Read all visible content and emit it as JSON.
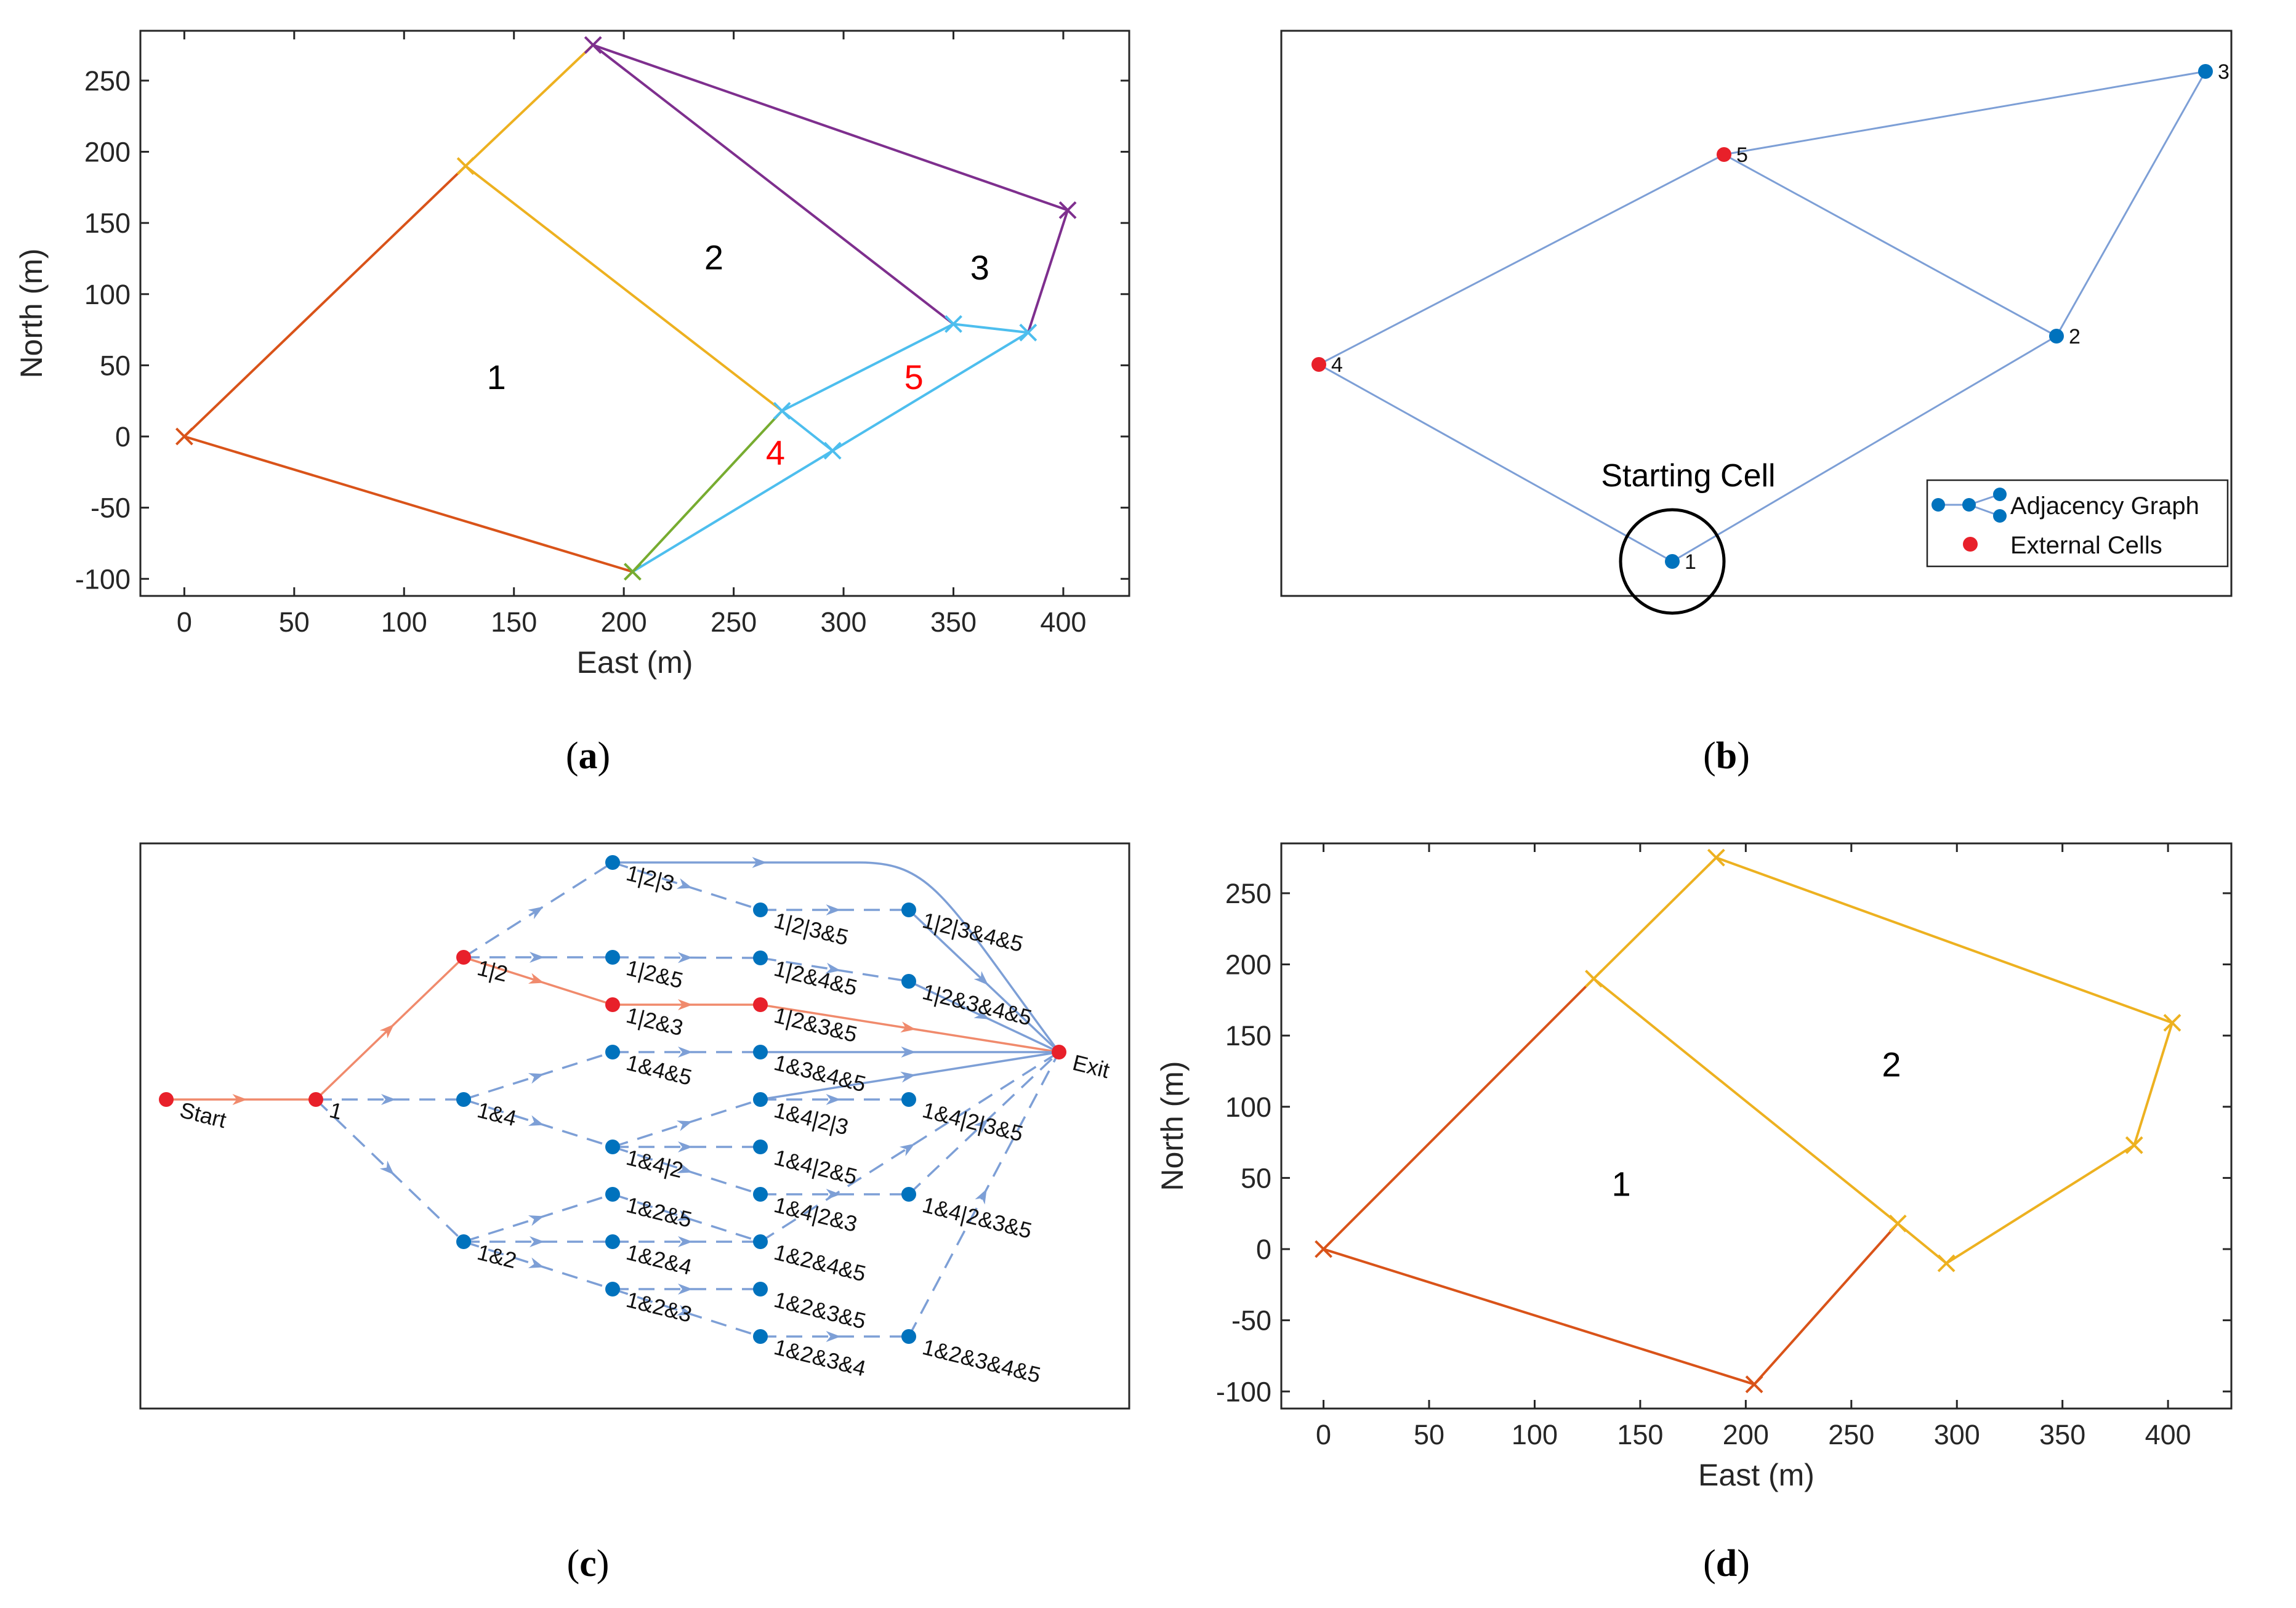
{
  "panels": {
    "a": {
      "caption": "a",
      "xlabel": "East (m)",
      "ylabel": "North (m)",
      "xlim": [
        -20,
        430
      ],
      "ylim": [
        -112,
        285
      ],
      "xticks": [
        0,
        50,
        100,
        150,
        200,
        250,
        300,
        350,
        400
      ],
      "yticks": [
        -100,
        -50,
        0,
        50,
        100,
        150,
        200,
        250
      ],
      "segments": [
        {
          "from": [
            0,
            0
          ],
          "to": [
            128,
            190
          ],
          "color": "#d95319",
          "style": "solid"
        },
        {
          "from": [
            0,
            0
          ],
          "to": [
            204,
            -95
          ],
          "color": "#d95319",
          "style": "solid"
        },
        {
          "from": [
            128,
            190
          ],
          "to": [
            186,
            275
          ],
          "color": "#edb120",
          "style": "solid"
        },
        {
          "from": [
            128,
            190
          ],
          "to": [
            272,
            18
          ],
          "color": "#edb120",
          "style": "solid"
        },
        {
          "from": [
            186,
            275
          ],
          "to": [
            402,
            159
          ],
          "color": "#7e2f8e",
          "style": "solid"
        },
        {
          "from": [
            186,
            275
          ],
          "to": [
            350,
            79
          ],
          "color": "#7e2f8e",
          "style": "solid"
        },
        {
          "from": [
            402,
            159
          ],
          "to": [
            384,
            73
          ],
          "color": "#7e2f8e",
          "style": "solid"
        },
        {
          "from": [
            204,
            -95
          ],
          "to": [
            272,
            18
          ],
          "color": "#77ac30",
          "style": "solid"
        },
        {
          "from": [
            204,
            -95
          ],
          "to": [
            295,
            -10
          ],
          "color": "#4dbeee",
          "style": "solid"
        },
        {
          "from": [
            272,
            18
          ],
          "to": [
            295,
            -10
          ],
          "color": "#4dbeee",
          "style": "solid"
        },
        {
          "from": [
            272,
            18
          ],
          "to": [
            350,
            79
          ],
          "color": "#4dbeee",
          "style": "solid"
        },
        {
          "from": [
            350,
            79
          ],
          "to": [
            384,
            73
          ],
          "color": "#4dbeee",
          "style": "solid"
        },
        {
          "from": [
            295,
            -10
          ],
          "to": [
            384,
            73
          ],
          "color": "#4dbeee",
          "style": "solid"
        }
      ],
      "markers": [
        {
          "x": 0,
          "y": 0,
          "color": "#d95319"
        },
        {
          "x": 128,
          "y": 190,
          "color": "#edb120"
        },
        {
          "x": 186,
          "y": 275,
          "color": "#7e2f8e"
        },
        {
          "x": 402,
          "y": 159,
          "color": "#7e2f8e"
        },
        {
          "x": 384,
          "y": 73,
          "color": "#4dbeee"
        },
        {
          "x": 350,
          "y": 79,
          "color": "#4dbeee"
        },
        {
          "x": 272,
          "y": 18,
          "color": "#4dbeee"
        },
        {
          "x": 295,
          "y": -10,
          "color": "#4dbeee"
        },
        {
          "x": 204,
          "y": -95,
          "color": "#77ac30"
        }
      ],
      "labels": [
        {
          "text": "1",
          "x": 142,
          "y": 42,
          "color": "#000000"
        },
        {
          "text": "2",
          "x": 241,
          "y": 126,
          "color": "#000000"
        },
        {
          "text": "3",
          "x": 362,
          "y": 119,
          "color": "#000000"
        },
        {
          "text": "4",
          "x": 269,
          "y": -11,
          "color": "#ff0000"
        },
        {
          "text": "5",
          "x": 332,
          "y": 42,
          "color": "#ff0000"
        }
      ]
    },
    "b": {
      "caption": "b",
      "edges": [
        [
          1,
          4
        ],
        [
          4,
          5
        ],
        [
          5,
          3
        ],
        [
          3,
          2
        ],
        [
          2,
          5
        ],
        [
          2,
          1
        ]
      ],
      "nodes": [
        {
          "id": 1,
          "label": "1",
          "external": false
        },
        {
          "id": 2,
          "label": "2",
          "external": false
        },
        {
          "id": 3,
          "label": "3",
          "external": false
        },
        {
          "id": 4,
          "label": "4",
          "external": true
        },
        {
          "id": 5,
          "label": "5",
          "external": true
        }
      ],
      "annotation": "Starting Cell",
      "legend": [
        "Adjacency Graph",
        "External Cells"
      ],
      "colors": {
        "edge": "#7d9fd6",
        "node": "#0072bd",
        "external": "#e8202a"
      }
    },
    "c": {
      "caption": "c",
      "nodes": [
        {
          "id": "Start",
          "col": 0,
          "row": 5,
          "red": true
        },
        {
          "id": "1",
          "col": 1,
          "row": 5,
          "red": true
        },
        {
          "id": "1|2",
          "col": 2,
          "row": 2,
          "red": true
        },
        {
          "id": "1&4",
          "col": 2,
          "row": 5,
          "red": false
        },
        {
          "id": "1&2",
          "col": 2,
          "row": 8,
          "red": false
        },
        {
          "id": "1|2|3",
          "col": 3,
          "row": 0,
          "red": false
        },
        {
          "id": "1|2&5",
          "col": 3,
          "row": 2,
          "red": false
        },
        {
          "id": "1|2&3",
          "col": 3,
          "row": 3,
          "red": true
        },
        {
          "id": "1&4&5",
          "col": 3,
          "row": 4,
          "red": false
        },
        {
          "id": "1&4|2",
          "col": 3,
          "row": 6,
          "red": false
        },
        {
          "id": "1&2&5",
          "col": 3,
          "row": 7,
          "red": false
        },
        {
          "id": "1&2&4",
          "col": 3,
          "row": 8,
          "red": false
        },
        {
          "id": "1&2&3",
          "col": 3,
          "row": 9,
          "red": false
        },
        {
          "id": "1|2|3&5",
          "col": 4,
          "row": 1,
          "red": false
        },
        {
          "id": "1|2&4&5",
          "col": 4,
          "row": 2,
          "red": false
        },
        {
          "id": "1|2&3&5",
          "col": 4,
          "row": 3,
          "red": true
        },
        {
          "id": "1&3&4&5",
          "col": 4,
          "row": 4,
          "red": false
        },
        {
          "id": "1&4|2|3",
          "col": 4,
          "row": 5,
          "red": false
        },
        {
          "id": "1&4|2&5",
          "col": 4,
          "row": 6,
          "red": false
        },
        {
          "id": "1&4|2&3",
          "col": 4,
          "row": 7,
          "red": false
        },
        {
          "id": "1&2&4&5",
          "col": 4,
          "row": 8,
          "red": false
        },
        {
          "id": "1&2&3&5",
          "col": 4,
          "row": 9,
          "red": false
        },
        {
          "id": "1&2&3&4",
          "col": 4,
          "row": 10,
          "red": false
        },
        {
          "id": "1|2|3&4&5",
          "col": 5,
          "row": 1,
          "red": false
        },
        {
          "id": "1|2&3&4&5",
          "col": 5,
          "row": 2,
          "red": false
        },
        {
          "id": "1&4|2|3&5",
          "col": 5,
          "row": 5,
          "red": false
        },
        {
          "id": "1&4|2&3&5",
          "col": 5,
          "row": 7,
          "red": false
        },
        {
          "id": "1&2&3&4&5",
          "col": 5,
          "row": 10,
          "red": false
        },
        {
          "id": "Exit",
          "col": 6,
          "row": 4,
          "red": true
        }
      ],
      "edges": [
        {
          "from": "Start",
          "to": "1",
          "style": "path"
        },
        {
          "from": "1",
          "to": "1|2",
          "style": "path"
        },
        {
          "from": "1",
          "to": "1&4",
          "style": "dashed"
        },
        {
          "from": "1",
          "to": "1&2",
          "style": "dashed"
        },
        {
          "from": "1|2",
          "to": "1|2|3",
          "style": "dashed"
        },
        {
          "from": "1|2",
          "to": "1|2&5",
          "style": "dashed"
        },
        {
          "from": "1|2",
          "to": "1|2&3",
          "style": "path"
        },
        {
          "from": "1|2&3",
          "to": "1|2&3&5",
          "style": "path"
        },
        {
          "from": "1|2&3&5",
          "to": "Exit",
          "style": "path"
        },
        {
          "from": "1|2|3",
          "to": "1|2|3&5",
          "style": "dashed"
        },
        {
          "from": "1|2|3",
          "to": "Exit",
          "style": "curve"
        },
        {
          "from": "1|2|3&5",
          "to": "1|2|3&4&5",
          "style": "dashed"
        },
        {
          "from": "1|2&5",
          "to": "1|2&4&5",
          "style": "dashed"
        },
        {
          "from": "1|2&4&5",
          "to": "1|2&3&4&5",
          "style": "dashed"
        },
        {
          "from": "1|2&3&4&5",
          "to": "Exit",
          "style": "solid"
        },
        {
          "from": "1|2|3&4&5",
          "to": "Exit",
          "style": "solid"
        },
        {
          "from": "1&4",
          "to": "1&4&5",
          "style": "dashed"
        },
        {
          "from": "1&4",
          "to": "1&4|2",
          "style": "dashed"
        },
        {
          "from": "1&4&5",
          "to": "1&3&4&5",
          "style": "dashed"
        },
        {
          "from": "1&3&4&5",
          "to": "Exit",
          "style": "solid"
        },
        {
          "from": "1&4|2",
          "to": "1&4|2|3",
          "style": "dashed"
        },
        {
          "from": "1&4|2",
          "to": "1&4|2&5",
          "style": "dashed"
        },
        {
          "from": "1&4|2",
          "to": "1&4|2&3",
          "style": "dashed"
        },
        {
          "from": "1&4|2|3",
          "to": "1&4|2|3&5",
          "style": "dashed"
        },
        {
          "from": "1&4|2|3",
          "to": "Exit",
          "style": "solid"
        },
        {
          "from": "1&4|2&3",
          "to": "1&4|2&3&5",
          "style": "dashed"
        },
        {
          "from": "1&4|2&3&5",
          "to": "Exit",
          "style": "dashed"
        },
        {
          "from": "1&2",
          "to": "1&2&5",
          "style": "dashed"
        },
        {
          "from": "1&2",
          "to": "1&2&4",
          "style": "dashed"
        },
        {
          "from": "1&2",
          "to": "1&2&3",
          "style": "dashed"
        },
        {
          "from": "1&2&5",
          "to": "1&2&4&5",
          "style": "dashed"
        },
        {
          "from": "1&2&4",
          "to": "1&2&4&5",
          "style": "dashed"
        },
        {
          "from": "1&2&3",
          "to": "1&2&3&5",
          "style": "dashed"
        },
        {
          "from": "1&2&3",
          "to": "1&2&3&4",
          "style": "dashed"
        },
        {
          "from": "1&2&3&4",
          "to": "1&2&3&4&5",
          "style": "dashed"
        },
        {
          "from": "1&2&3&4&5",
          "to": "Exit",
          "style": "dashed"
        },
        {
          "from": "1&2&4&5",
          "to": "Exit",
          "style": "dashed"
        }
      ],
      "colors": {
        "path": "#f08a6c",
        "edge": "#7d9fd6",
        "node": "#0072bd",
        "red": "#e8202a"
      }
    },
    "d": {
      "caption": "d",
      "xlabel": "East (m)",
      "ylabel": "North (m)",
      "xlim": [
        -20,
        430
      ],
      "ylim": [
        -112,
        285
      ],
      "xticks": [
        0,
        50,
        100,
        150,
        200,
        250,
        300,
        350,
        400
      ],
      "yticks": [
        -100,
        -50,
        0,
        50,
        100,
        150,
        200,
        250
      ],
      "segments": [
        {
          "from": [
            0,
            0
          ],
          "to": [
            128,
            190
          ],
          "color": "#d95319",
          "style": "solid"
        },
        {
          "from": [
            0,
            0
          ],
          "to": [
            204,
            -95
          ],
          "color": "#d95319",
          "style": "solid"
        },
        {
          "from": [
            204,
            -95
          ],
          "to": [
            272,
            18
          ],
          "color": "#d95319",
          "style": "solid"
        },
        {
          "from": [
            128,
            190
          ],
          "to": [
            272,
            18
          ],
          "color": "#edb120",
          "style": "solid"
        },
        {
          "from": [
            128,
            190
          ],
          "to": [
            186,
            275
          ],
          "color": "#edb120",
          "style": "solid"
        },
        {
          "from": [
            186,
            275
          ],
          "to": [
            402,
            159
          ],
          "color": "#edb120",
          "style": "solid"
        },
        {
          "from": [
            402,
            159
          ],
          "to": [
            384,
            73
          ],
          "color": "#edb120",
          "style": "solid"
        },
        {
          "from": [
            384,
            73
          ],
          "to": [
            295,
            -10
          ],
          "color": "#edb120",
          "style": "solid"
        },
        {
          "from": [
            295,
            -10
          ],
          "to": [
            272,
            18
          ],
          "color": "#edb120",
          "style": "solid"
        }
      ],
      "markers": [
        {
          "x": 0,
          "y": 0,
          "color": "#d95319"
        },
        {
          "x": 204,
          "y": -95,
          "color": "#d95319"
        },
        {
          "x": 128,
          "y": 190,
          "color": "#edb120"
        },
        {
          "x": 272,
          "y": 18,
          "color": "#edb120"
        },
        {
          "x": 186,
          "y": 275,
          "color": "#edb120"
        },
        {
          "x": 402,
          "y": 159,
          "color": "#edb120"
        },
        {
          "x": 384,
          "y": 73,
          "color": "#edb120"
        },
        {
          "x": 295,
          "y": -10,
          "color": "#edb120"
        }
      ],
      "labels": [
        {
          "text": "1",
          "x": 141,
          "y": 46,
          "color": "#000000"
        },
        {
          "text": "2",
          "x": 269,
          "y": 130,
          "color": "#000000"
        }
      ]
    }
  }
}
